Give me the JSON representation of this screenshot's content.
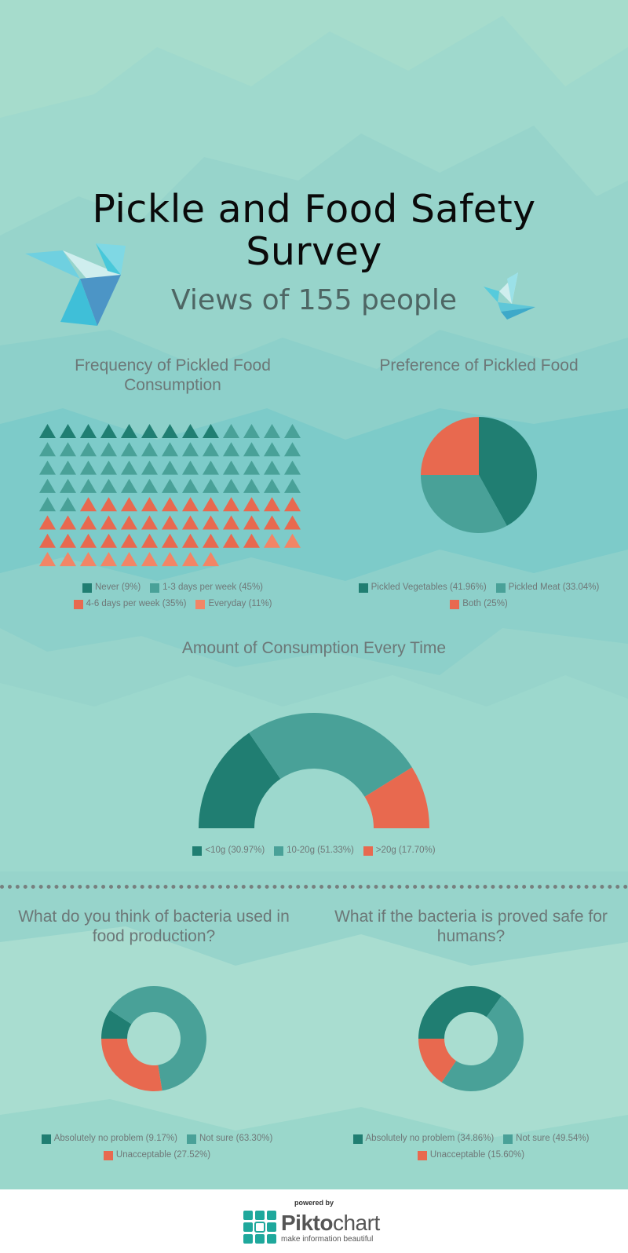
{
  "header": {
    "title_line1": "Pickle and Food Safety",
    "title_line2": "Survey",
    "subtitle": "Views of 155 people"
  },
  "colors": {
    "dark_teal": "#207e72",
    "teal": "#49a198",
    "orange": "#e8694f",
    "light_orange": "#f28566",
    "background": "#a6dccc"
  },
  "chart_data": [
    {
      "type": "pictograph",
      "title": "Frequency of Pickled Food Consumption",
      "icon": "triangle",
      "series": [
        {
          "name": "Never (9%)",
          "value": 9,
          "count": 9,
          "color": "#207e72"
        },
        {
          "name": "1-3 days per week (45%)",
          "value": 45,
          "count": 45,
          "color": "#49a198"
        },
        {
          "name": "4-6 days per week (35%)",
          "value": 35,
          "count": 35,
          "color": "#e8694f"
        },
        {
          "name": "Everyday (11%)",
          "value": 11,
          "count": 11,
          "color": "#f28566"
        }
      ]
    },
    {
      "type": "pie",
      "title": "Preference of Pickled Food",
      "series": [
        {
          "name": "Pickled Vegetables (41.96%)",
          "value": 41.96,
          "color": "#207e72"
        },
        {
          "name": "Pickled Meat (33.04%)",
          "value": 33.04,
          "color": "#49a198"
        },
        {
          "name": "Both (25%)",
          "value": 25,
          "color": "#e8694f"
        }
      ]
    },
    {
      "type": "semi-donut",
      "title": "Amount of Consumption Every Time",
      "series": [
        {
          "name": "<10g (30.97%)",
          "value": 30.97,
          "color": "#207e72"
        },
        {
          "name": "10-20g (51.33%)",
          "value": 51.33,
          "color": "#49a198"
        },
        {
          "name": ">20g (17.70%)",
          "value": 17.7,
          "color": "#e8694f"
        }
      ]
    },
    {
      "type": "donut",
      "title": "What do you think of bacteria used in food production?",
      "series": [
        {
          "name": "Absolutely no problem (9.17%)",
          "value": 9.17,
          "color": "#207e72"
        },
        {
          "name": "Not sure (63.30%)",
          "value": 63.3,
          "color": "#49a198"
        },
        {
          "name": "Unacceptable (27.52%)",
          "value": 27.52,
          "color": "#e8694f"
        }
      ]
    },
    {
      "type": "donut",
      "title": "What if the bacteria is proved safe for humans?",
      "series": [
        {
          "name": "Absolutely no problem (34.86%)",
          "value": 34.86,
          "color": "#207e72"
        },
        {
          "name": "Not sure (49.54%)",
          "value": 49.54,
          "color": "#49a198"
        },
        {
          "name": "Unacceptable (15.60%)",
          "value": 15.6,
          "color": "#e8694f"
        }
      ]
    }
  ],
  "footer": {
    "powered_by": "powered by",
    "brand_bold": "Pikto",
    "brand_light": "chart",
    "tagline": "make information beautiful",
    "logo_icon": "piktochart-logo-icon"
  }
}
